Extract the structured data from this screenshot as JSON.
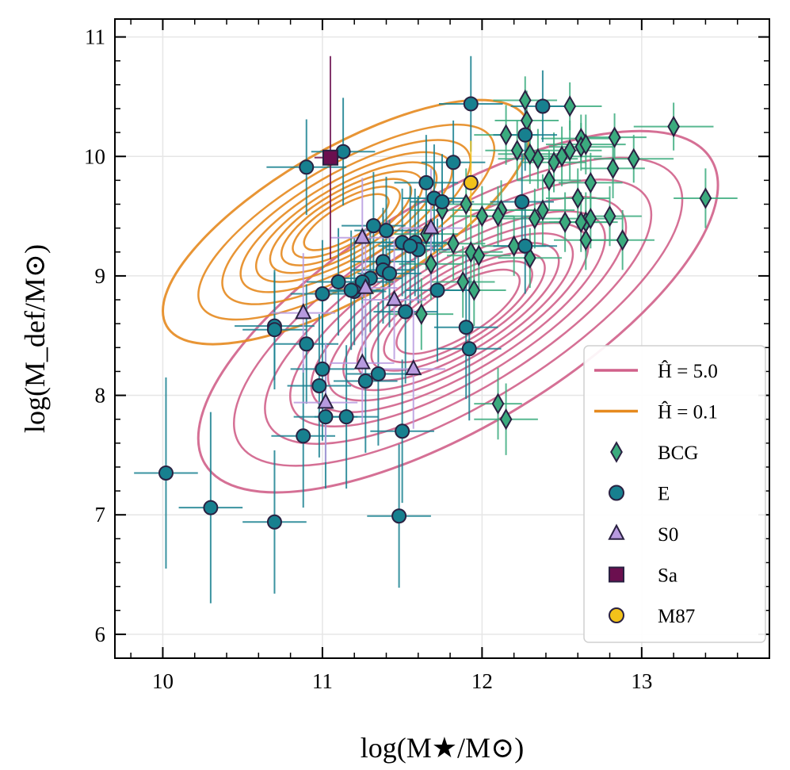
{
  "chart_data": {
    "type": "scatter",
    "xlabel": "log(M★/M⊙)",
    "ylabel": "log(M_def/M⊙)",
    "xlim": [
      9.7,
      13.8
    ],
    "ylim": [
      5.8,
      11.15
    ],
    "xticks": [
      10,
      11,
      12,
      13
    ],
    "yticks": [
      6,
      7,
      8,
      9,
      10,
      11
    ],
    "grid": true,
    "legend_position": "bottom-right",
    "legend": [
      {
        "label": "Ĥ = 5.0",
        "kind": "line",
        "color": "#d0608a"
      },
      {
        "label": "Ĥ = 0.1",
        "kind": "line",
        "color": "#e68a1f"
      },
      {
        "label": "BCG",
        "kind": "diamond",
        "color": "#3bab7e"
      },
      {
        "label": "E",
        "kind": "circle",
        "color": "#17808f"
      },
      {
        "label": "S0",
        "kind": "triangle",
        "color": "#b79adf"
      },
      {
        "label": "Sa",
        "kind": "square",
        "color": "#6b0f4f"
      },
      {
        "label": "M87",
        "kind": "circle",
        "color": "#f2c21a"
      }
    ],
    "contours": [
      {
        "name": "Ĥ = 5.0",
        "color": "#d0608a",
        "center": [
          11.85,
          8.7
        ],
        "angle_deg": 31,
        "rx": [
          1.85,
          1.6,
          1.38,
          1.2,
          1.05,
          0.93,
          0.82,
          0.72,
          0.62,
          0.53,
          0.44
        ],
        "ry": [
          0.95,
          0.78,
          0.66,
          0.57,
          0.5,
          0.44,
          0.39,
          0.34,
          0.29,
          0.25,
          0.21
        ]
      },
      {
        "name": "Ĥ = 0.1",
        "color": "#e68a1f",
        "center": [
          11.15,
          9.45
        ],
        "angle_deg": 30,
        "rx": [
          1.3,
          1.05,
          0.88,
          0.75,
          0.64,
          0.54,
          0.46,
          0.38,
          0.3
        ],
        "ry": [
          0.62,
          0.48,
          0.41,
          0.35,
          0.3,
          0.26,
          0.22,
          0.18,
          0.14
        ]
      }
    ],
    "series": [
      {
        "name": "BCG",
        "marker": "diamond",
        "color": "#3bab7e",
        "x": [
          12.27,
          12.28,
          12.35,
          12.55,
          12.62,
          12.62,
          12.65,
          12.68,
          12.83,
          12.95,
          13.2,
          13.4,
          12.15,
          12.22,
          12.3,
          12.38,
          12.42,
          12.45,
          12.5,
          12.55,
          12.6,
          12.65,
          12.68,
          12.82,
          12.8,
          12.88,
          12.65,
          12.62,
          12.52,
          12.33,
          12.3,
          12.2,
          12.12,
          12.1,
          12.0,
          11.95,
          11.9,
          11.93,
          11.98,
          11.88,
          11.82,
          11.75,
          11.68,
          11.62,
          12.1,
          12.15,
          11.65
        ],
        "y": [
          10.47,
          10.3,
          9.98,
          10.42,
          10.15,
          10.08,
          10.1,
          9.78,
          10.16,
          9.98,
          10.25,
          9.65,
          10.18,
          10.05,
          10.02,
          9.55,
          9.8,
          9.95,
          10.0,
          10.05,
          9.65,
          9.45,
          9.48,
          9.9,
          9.5,
          9.3,
          9.3,
          9.45,
          9.45,
          9.48,
          9.15,
          9.25,
          9.55,
          9.5,
          9.5,
          8.88,
          9.6,
          9.2,
          9.17,
          8.95,
          9.27,
          9.55,
          9.1,
          8.68,
          7.93,
          7.8,
          9.35
        ],
        "xerr": [
          0.2,
          0.2,
          0.25,
          0.2,
          0.25,
          0.2,
          0.25,
          0.2,
          0.2,
          0.25,
          0.25,
          0.2,
          0.2,
          0.2,
          0.2,
          0.2,
          0.2,
          0.2,
          0.25,
          0.2,
          0.2,
          0.2,
          0.2,
          0.2,
          0.2,
          0.2,
          0.2,
          0.2,
          0.2,
          0.2,
          0.2,
          0.2,
          0.2,
          0.2,
          0.2,
          0.2,
          0.2,
          0.2,
          0.2,
          0.2,
          0.2,
          0.2,
          0.2,
          0.2,
          0.15,
          0.2,
          0.2
        ],
        "yerr": [
          0.2,
          0.25,
          0.25,
          0.2,
          0.2,
          0.2,
          0.25,
          0.25,
          0.2,
          0.2,
          0.2,
          0.25,
          0.25,
          0.25,
          0.25,
          0.3,
          0.25,
          0.25,
          0.25,
          0.25,
          0.25,
          0.25,
          0.25,
          0.25,
          0.25,
          0.25,
          0.25,
          0.25,
          0.25,
          0.25,
          0.25,
          0.25,
          0.25,
          0.25,
          0.25,
          0.3,
          0.3,
          0.3,
          0.3,
          0.3,
          0.3,
          0.25,
          0.3,
          0.3,
          0.3,
          0.3,
          0.3
        ]
      },
      {
        "name": "E",
        "marker": "circle",
        "color": "#17808f",
        "x": [
          11.93,
          12.38,
          12.27,
          11.13,
          10.9,
          11.82,
          11.65,
          11.7,
          11.75,
          12.25,
          12.27,
          11.32,
          11.4,
          11.5,
          11.58,
          11.6,
          11.38,
          11.38,
          11.42,
          11.3,
          11.25,
          11.1,
          11.2,
          11.0,
          10.7,
          10.7,
          10.9,
          11.52,
          11.72,
          11.18,
          11.35,
          11.27,
          11.0,
          10.98,
          11.02,
          11.15,
          10.88,
          11.5,
          10.02,
          10.3,
          10.7,
          11.48,
          11.9,
          11.92,
          11.55
        ],
        "y": [
          10.44,
          10.42,
          10.18,
          10.04,
          9.91,
          9.95,
          9.78,
          9.65,
          9.62,
          9.62,
          9.25,
          9.42,
          9.38,
          9.28,
          9.28,
          9.22,
          9.12,
          9.05,
          9.02,
          8.98,
          8.95,
          8.95,
          8.87,
          8.85,
          8.58,
          8.55,
          8.43,
          8.7,
          8.88,
          8.88,
          8.18,
          8.12,
          8.22,
          8.08,
          7.82,
          7.82,
          7.66,
          7.7,
          7.35,
          7.06,
          6.94,
          6.99,
          8.57,
          8.39,
          9.25
        ],
        "xerr": [
          0.2,
          0.2,
          0.2,
          0.2,
          0.25,
          0.2,
          0.2,
          0.2,
          0.2,
          0.2,
          0.2,
          0.2,
          0.2,
          0.2,
          0.2,
          0.2,
          0.2,
          0.2,
          0.2,
          0.2,
          0.2,
          0.2,
          0.2,
          0.2,
          0.25,
          0.2,
          0.2,
          0.2,
          0.2,
          0.2,
          0.2,
          0.2,
          0.2,
          0.2,
          0.2,
          0.2,
          0.2,
          0.2,
          0.2,
          0.2,
          0.2,
          0.2,
          0.2,
          0.2,
          0.2
        ],
        "yerr": [
          0.4,
          0.3,
          0.3,
          0.45,
          0.4,
          0.35,
          0.4,
          0.45,
          0.4,
          0.4,
          0.4,
          0.45,
          0.45,
          0.45,
          0.45,
          0.45,
          0.45,
          0.45,
          0.45,
          0.45,
          0.45,
          0.45,
          0.45,
          0.45,
          0.45,
          0.5,
          0.5,
          0.6,
          0.6,
          0.5,
          0.6,
          0.6,
          0.6,
          0.6,
          0.6,
          0.6,
          0.6,
          0.6,
          0.8,
          0.8,
          0.6,
          0.6,
          0.6,
          0.6,
          0.5
        ]
      },
      {
        "name": "S0",
        "marker": "triangle",
        "color": "#b79adf",
        "x": [
          11.25,
          11.68,
          10.88,
          11.27,
          11.45,
          11.25,
          11.57,
          11.02
        ],
        "y": [
          9.32,
          9.4,
          8.69,
          8.9,
          8.8,
          8.27,
          8.22,
          7.94
        ],
        "xerr": [
          0.2,
          0.2,
          0.2,
          0.2,
          0.2,
          0.2,
          0.2,
          0.2
        ],
        "yerr": [
          0.5,
          0.5,
          0.5,
          0.5,
          0.5,
          0.5,
          0.5,
          0.5
        ]
      },
      {
        "name": "Sa",
        "marker": "square",
        "color": "#6b0f4f",
        "x": [
          11.05
        ],
        "y": [
          9.99
        ],
        "xerr": [
          0.1
        ],
        "yerr": [
          0.85
        ]
      },
      {
        "name": "M87",
        "marker": "circle",
        "color": "#f2c21a",
        "x": [
          11.93
        ],
        "y": [
          9.78
        ],
        "xerr": [
          0.05
        ],
        "yerr": [
          0.35
        ]
      }
    ]
  }
}
